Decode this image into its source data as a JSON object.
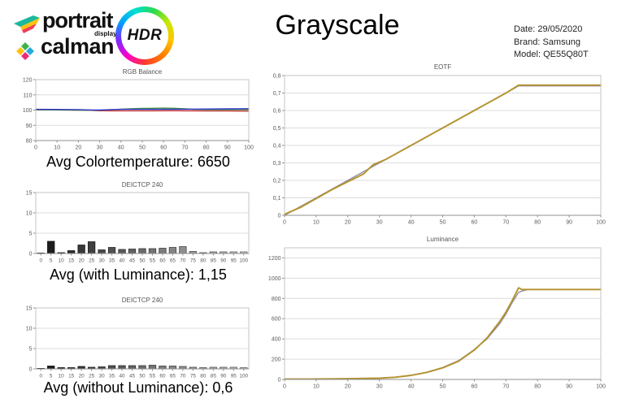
{
  "header": {
    "logo": {
      "portrait": "portrait",
      "displays": "displays",
      "calman": "calman",
      "hdr": "HDR"
    },
    "title": "Grayscale",
    "meta": {
      "date": "Date: 29/05/2020",
      "brand": "Brand: Samsung",
      "model": "Model: QE55Q80T"
    }
  },
  "colors": {
    "grid": "#dcdcdc",
    "border": "#c4c4c4",
    "axis": "#8f8f8f",
    "tick_text": "#595959",
    "red": "#cf3a3a",
    "green": "#3c8f3c",
    "blue": "#3434c8",
    "gold": "#b3922e",
    "reference_gray": "#8f8fa3"
  },
  "chart_data": [
    {
      "id": "rgb-balance",
      "type": "line",
      "title": "RGB Balance",
      "caption": "Avg Colortemperature: 6650",
      "xlim": [
        0,
        100
      ],
      "ylim": [
        80,
        120
      ],
      "xticks": {
        "values": [
          0,
          10,
          20,
          30,
          40,
          50,
          60,
          70,
          80,
          90,
          100
        ],
        "labels": [
          "0",
          "10",
          "20",
          "30",
          "40",
          "50",
          "60",
          "70",
          "80",
          "90",
          "100"
        ]
      },
      "yticks": {
        "values": [
          80,
          90,
          100,
          110,
          120
        ],
        "labels": [
          "80",
          "90",
          "100",
          "110",
          "120"
        ]
      },
      "series": [
        {
          "name": "red-balance",
          "color": "#cf3a3a",
          "points": [
            [
              0,
              100.2
            ],
            [
              10,
              100.1
            ],
            [
              20,
              100.0
            ],
            [
              25,
              99.9
            ],
            [
              30,
              99.6
            ],
            [
              35,
              99.5
            ],
            [
              45,
              99.5
            ],
            [
              55,
              99.5
            ],
            [
              65,
              99.6
            ],
            [
              70,
              99.5
            ],
            [
              80,
              99.4
            ],
            [
              90,
              99.4
            ],
            [
              100,
              99.3
            ]
          ]
        },
        {
          "name": "green-balance",
          "color": "#3c8f3c",
          "points": [
            [
              0,
              100.2
            ],
            [
              10,
              100.1
            ],
            [
              20,
              100.0
            ],
            [
              25,
              99.9
            ],
            [
              30,
              99.9
            ],
            [
              35,
              100.2
            ],
            [
              40,
              100.6
            ],
            [
              45,
              100.9
            ],
            [
              50,
              101.1
            ],
            [
              55,
              101.2
            ],
            [
              60,
              101.3
            ],
            [
              65,
              101.2
            ],
            [
              70,
              100.8
            ],
            [
              75,
              100.4
            ],
            [
              80,
              100.3
            ],
            [
              90,
              100.3
            ],
            [
              100,
              100.3
            ]
          ]
        },
        {
          "name": "blue-balance",
          "color": "#3434c8",
          "points": [
            [
              0,
              100.5
            ],
            [
              10,
              100.4
            ],
            [
              20,
              100.3
            ],
            [
              25,
              100.1
            ],
            [
              30,
              100.0
            ],
            [
              35,
              100.3
            ],
            [
              40,
              100.5
            ],
            [
              50,
              100.5
            ],
            [
              60,
              100.5
            ],
            [
              70,
              100.6
            ],
            [
              80,
              100.7
            ],
            [
              90,
              100.8
            ],
            [
              100,
              100.9
            ]
          ]
        }
      ]
    },
    {
      "id": "deictcp-with-luminance",
      "type": "bar",
      "title": "DEICTCP 240",
      "caption": "Avg (with Luminance): 1,15",
      "categories": [
        0,
        5,
        10,
        15,
        20,
        25,
        30,
        35,
        40,
        45,
        50,
        55,
        60,
        65,
        70,
        75,
        80,
        85,
        90,
        95,
        100
      ],
      "values": [
        0.1,
        3.0,
        0.2,
        0.7,
        2.1,
        2.9,
        0.9,
        1.5,
        1.0,
        1.1,
        1.2,
        1.2,
        1.3,
        1.5,
        1.7,
        0.5,
        0.2,
        0.4,
        0.4,
        0.4,
        0.4
      ],
      "ylim": [
        0,
        15
      ],
      "yticks": {
        "values": [
          0,
          5,
          10,
          15
        ],
        "labels": [
          "0",
          "5",
          "10",
          "15"
        ]
      }
    },
    {
      "id": "deictcp-without-luminance",
      "type": "bar",
      "title": "DEICTCP 240",
      "caption": "Avg (without Luminance): 0,6",
      "categories": [
        0,
        5,
        10,
        15,
        20,
        25,
        30,
        35,
        40,
        45,
        50,
        55,
        60,
        65,
        70,
        75,
        80,
        85,
        90,
        95,
        100
      ],
      "values": [
        0.1,
        0.7,
        0.3,
        0.3,
        0.6,
        0.4,
        0.5,
        0.8,
        0.8,
        0.8,
        0.8,
        0.9,
        0.7,
        0.7,
        0.6,
        0.4,
        0.3,
        0.4,
        0.4,
        0.4,
        0.3
      ],
      "ylim": [
        0,
        15
      ],
      "yticks": {
        "values": [
          0,
          5,
          10,
          15
        ],
        "labels": [
          "0",
          "5",
          "10",
          "15"
        ]
      }
    },
    {
      "id": "eotf",
      "type": "line",
      "title": "EOTF",
      "xlim": [
        0,
        100
      ],
      "ylim": [
        0,
        0.8
      ],
      "xticks": {
        "values": [
          0,
          10,
          20,
          30,
          40,
          50,
          60,
          70,
          80,
          90,
          100
        ],
        "labels": [
          "0",
          "10",
          "20",
          "30",
          "40",
          "50",
          "60",
          "70",
          "80",
          "90",
          "100"
        ]
      },
      "yticks": {
        "values": [
          0,
          0.1,
          0.2,
          0.3,
          0.4,
          0.5,
          0.6,
          0.7,
          0.8
        ],
        "labels": [
          "0",
          "0,1",
          "0,2",
          "0,3",
          "0,4",
          "0,5",
          "0,6",
          "0,7",
          "0,8"
        ]
      },
      "series": [
        {
          "name": "eotf-reference",
          "color": "#8f8fa3",
          "points": [
            [
              0,
              0
            ],
            [
              10,
              0.1
            ],
            [
              20,
              0.2
            ],
            [
              30,
              0.3
            ],
            [
              40,
              0.4
            ],
            [
              50,
              0.5
            ],
            [
              60,
              0.6
            ],
            [
              70,
              0.7
            ],
            [
              74,
              0.741
            ],
            [
              100,
              0.741
            ]
          ]
        },
        {
          "name": "eotf-measured",
          "color": "#b3922e",
          "points": [
            [
              0,
              0.006
            ],
            [
              5,
              0.045
            ],
            [
              10,
              0.096
            ],
            [
              15,
              0.147
            ],
            [
              20,
              0.192
            ],
            [
              25,
              0.237
            ],
            [
              28,
              0.29
            ],
            [
              32,
              0.32
            ],
            [
              40,
              0.4
            ],
            [
              50,
              0.5
            ],
            [
              60,
              0.6
            ],
            [
              70,
              0.7
            ],
            [
              74,
              0.745
            ],
            [
              100,
              0.745
            ]
          ]
        }
      ]
    },
    {
      "id": "luminance",
      "type": "line",
      "title": "Luminance",
      "xlim": [
        0,
        100
      ],
      "ylim": [
        0,
        1300
      ],
      "xticks": {
        "values": [
          0,
          10,
          20,
          30,
          40,
          50,
          60,
          70,
          80,
          90,
          100
        ],
        "labels": [
          "0",
          "10",
          "20",
          "30",
          "40",
          "50",
          "60",
          "70",
          "80",
          "90",
          "100"
        ]
      },
      "yticks": {
        "values": [
          0,
          200,
          400,
          600,
          800,
          1000,
          1200
        ],
        "labels": [
          "0",
          "200",
          "400",
          "600",
          "800",
          "1000",
          "1200"
        ]
      },
      "series": [
        {
          "name": "luminance-measured",
          "color": "#8f8fa3",
          "points": [
            [
              0,
              3
            ],
            [
              10,
              4
            ],
            [
              20,
              7
            ],
            [
              30,
              13
            ],
            [
              35,
              22
            ],
            [
              40,
              42
            ],
            [
              45,
              72
            ],
            [
              50,
              118
            ],
            [
              55,
              185
            ],
            [
              60,
              295
            ],
            [
              64,
              400
            ],
            [
              68,
              550
            ],
            [
              70,
              645
            ],
            [
              72,
              760
            ],
            [
              74,
              860
            ],
            [
              75,
              872
            ],
            [
              77,
              888
            ],
            [
              100,
              888
            ]
          ]
        },
        {
          "name": "luminance-target",
          "color": "#b3922e",
          "points": [
            [
              0,
              3
            ],
            [
              10,
              4
            ],
            [
              20,
              7
            ],
            [
              30,
              13
            ],
            [
              35,
              22
            ],
            [
              40,
              40
            ],
            [
              45,
              70
            ],
            [
              50,
              115
            ],
            [
              55,
              180
            ],
            [
              60,
              290
            ],
            [
              64,
              410
            ],
            [
              68,
              570
            ],
            [
              70,
              665
            ],
            [
              72,
              780
            ],
            [
              74,
              905
            ],
            [
              75,
              888
            ],
            [
              100,
              888
            ]
          ]
        }
      ]
    }
  ]
}
